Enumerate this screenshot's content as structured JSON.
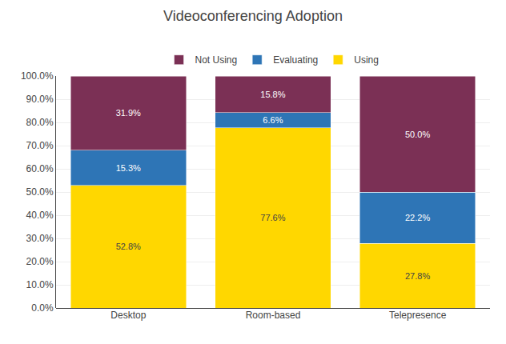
{
  "chart_data": {
    "type": "bar",
    "stacked": true,
    "title": "Videoconferencing Adoption",
    "categories": [
      "Desktop",
      "Room-based",
      "Telepresence"
    ],
    "series": [
      {
        "name": "Using",
        "color": "#FFD700",
        "values": [
          52.8,
          77.6,
          27.8
        ],
        "value_labels": [
          "52.8%",
          "77.6%",
          "27.8%"
        ]
      },
      {
        "name": "Evaluating",
        "color": "#2E75B6",
        "values": [
          15.3,
          6.6,
          22.2
        ],
        "value_labels": [
          "15.3%",
          "6.6%",
          "22.2%"
        ]
      },
      {
        "name": "Not Using",
        "color": "#7B3055",
        "values": [
          31.9,
          15.8,
          50.0
        ],
        "value_labels": [
          "31.9%",
          "15.8%",
          "50.0%"
        ]
      }
    ],
    "ylim": [
      0,
      100
    ],
    "yticks": [
      {
        "value": 0,
        "label": "0.0%"
      },
      {
        "value": 10,
        "label": "10.0%"
      },
      {
        "value": 20,
        "label": "20.0%"
      },
      {
        "value": 30,
        "label": "30.0%"
      },
      {
        "value": 40,
        "label": "40.0%"
      },
      {
        "value": 50,
        "label": "50.0%"
      },
      {
        "value": 60,
        "label": "60.0%"
      },
      {
        "value": 70,
        "label": "70.0%"
      },
      {
        "value": 80,
        "label": "80.0%"
      },
      {
        "value": 90,
        "label": "90.0%"
      },
      {
        "value": 100,
        "label": "100.0%"
      }
    ],
    "grid": true,
    "data_labels": true,
    "legend": "top"
  }
}
